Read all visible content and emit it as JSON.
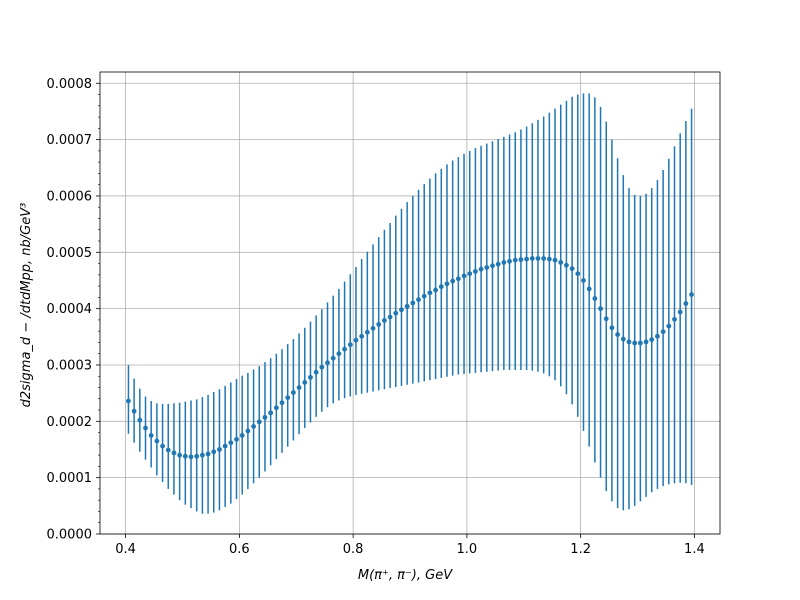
{
  "chart_data": {
    "type": "scatter",
    "title": "",
    "xlabel": "M(π⁺, π⁻), GeV",
    "ylabel": "d2sigma_d − /dtdMpp, nb/GeV³",
    "xlim": [
      0.355,
      1.445
    ],
    "ylim": [
      0.0,
      0.00082
    ],
    "grid": true,
    "legend": "none",
    "x_ticks": [
      0.4,
      0.6,
      0.8,
      1.0,
      1.2,
      1.4
    ],
    "x_tick_labels": [
      "0.4",
      "0.6",
      "0.8",
      "1.0",
      "1.2",
      "1.4"
    ],
    "y_ticks": [
      0.0,
      0.0001,
      0.0002,
      0.0003,
      0.0004,
      0.0005,
      0.0006,
      0.0007,
      0.0008
    ],
    "y_tick_labels": [
      "0.0000",
      "0.0001",
      "0.0002",
      "0.0003",
      "0.0004",
      "0.0005",
      "0.0006",
      "0.0007",
      "0.0008"
    ],
    "color": "#1f77b4",
    "series": [
      {
        "x": [
          0.405,
          0.415,
          0.425,
          0.435,
          0.445,
          0.455,
          0.465,
          0.475,
          0.485,
          0.495,
          0.505,
          0.515,
          0.525,
          0.535,
          0.545,
          0.555,
          0.565,
          0.575,
          0.585,
          0.595,
          0.605,
          0.615,
          0.625,
          0.635,
          0.645,
          0.655,
          0.665,
          0.675,
          0.685,
          0.695,
          0.705,
          0.715,
          0.725,
          0.735,
          0.745,
          0.755,
          0.765,
          0.775,
          0.785,
          0.795,
          0.805,
          0.815,
          0.825,
          0.835,
          0.845,
          0.855,
          0.865,
          0.875,
          0.885,
          0.895,
          0.905,
          0.915,
          0.925,
          0.935,
          0.945,
          0.955,
          0.965,
          0.975,
          0.985,
          0.995,
          1.005,
          1.015,
          1.025,
          1.035,
          1.045,
          1.055,
          1.065,
          1.075,
          1.085,
          1.095,
          1.105,
          1.115,
          1.125,
          1.135,
          1.145,
          1.155,
          1.165,
          1.175,
          1.185,
          1.195,
          1.205,
          1.215,
          1.225,
          1.235,
          1.245,
          1.255,
          1.265,
          1.275,
          1.285,
          1.295,
          1.305,
          1.315,
          1.325,
          1.335,
          1.345,
          1.355,
          1.365,
          1.375,
          1.385,
          1.395
        ],
        "y": [
          0.000236,
          0.000218,
          0.000202,
          0.000188,
          0.000175,
          0.000165,
          0.000156,
          0.000149,
          0.000144,
          0.00014,
          0.000138,
          0.000137,
          0.000138,
          0.00014,
          0.000142,
          0.000146,
          0.00015,
          0.000156,
          0.000162,
          0.000168,
          0.000175,
          0.000183,
          0.000191,
          0.000199,
          0.000207,
          0.000215,
          0.000224,
          0.000233,
          0.000242,
          0.000251,
          0.00026,
          0.000269,
          0.000278,
          0.000287,
          0.000296,
          0.000304,
          0.000312,
          0.00032,
          0.000328,
          0.000336,
          0.000344,
          0.000351,
          0.000358,
          0.000365,
          0.000372,
          0.000379,
          0.000385,
          0.000392,
          0.000398,
          0.000404,
          0.00041,
          0.000416,
          0.000422,
          0.000428,
          0.000433,
          0.000439,
          0.000444,
          0.000449,
          0.000453,
          0.000458,
          0.000462,
          0.000466,
          0.00047,
          0.000473,
          0.000476,
          0.000479,
          0.000482,
          0.000484,
          0.000486,
          0.000487,
          0.000488,
          0.000489,
          0.000489,
          0.000489,
          0.000488,
          0.000486,
          0.000482,
          0.000477,
          0.000471,
          0.000462,
          0.00045,
          0.000435,
          0.000418,
          0.0004,
          0.000382,
          0.000366,
          0.000354,
          0.000346,
          0.000341,
          0.000339,
          0.000339,
          0.000341,
          0.000345,
          0.000351,
          0.000359,
          0.000369,
          0.000381,
          0.000394,
          0.000409,
          0.000425
        ],
        "yerr_low": [
          0.000178,
          0.000162,
          0.000146,
          0.000132,
          0.000118,
          0.000104,
          9.2e-05,
          8e-05,
          7e-05,
          6e-05,
          5.2e-05,
          4.6e-05,
          4e-05,
          3.6e-05,
          3.6e-05,
          3.8e-05,
          4.2e-05,
          4.8e-05,
          5.4e-05,
          6.2e-05,
          7e-05,
          8e-05,
          9e-05,
          0.0001,
          0.000111,
          0.000122,
          0.000133,
          0.000144,
          0.000155,
          0.000166,
          0.000177,
          0.000188,
          0.000198,
          0.000208,
          0.000217,
          0.000225,
          0.000232,
          0.000237,
          0.000241,
          0.000244,
          0.000247,
          0.000249,
          0.000251,
          0.000253,
          0.000255,
          0.000257,
          0.000259,
          0.000261,
          0.000263,
          0.000265,
          0.000267,
          0.000269,
          0.000271,
          0.000273,
          0.000275,
          0.000277,
          0.000279,
          0.000281,
          0.000283,
          0.000284,
          0.000285,
          0.000286,
          0.000287,
          0.000288,
          0.000289,
          0.00029,
          0.000291,
          0.000291,
          0.000291,
          0.000291,
          0.000291,
          0.00029,
          0.000288,
          0.000285,
          0.00028,
          0.000273,
          0.000262,
          0.000248,
          0.00023,
          0.000208,
          0.000183,
          0.000155,
          0.000127,
          0.0001,
          7.6e-05,
          5.8e-05,
          4.6e-05,
          4.2e-05,
          4.4e-05,
          5e-05,
          5.8e-05,
          6.6e-05,
          7.4e-05,
          8e-05,
          8.5e-05,
          8.8e-05,
          9e-05,
          9.1e-05,
          9e-05,
          8.7e-05
        ],
        "yerr_high": [
          0.0003,
          0.000276,
          0.000258,
          0.000244,
          0.000236,
          0.000232,
          0.000231,
          0.000231,
          0.000232,
          0.000233,
          0.000235,
          0.000237,
          0.000239,
          0.000243,
          0.000247,
          0.000252,
          0.000257,
          0.000263,
          0.000269,
          0.000275,
          0.000281,
          0.000286,
          0.000292,
          0.000298,
          0.000305,
          0.000312,
          0.00032,
          0.000328,
          0.000337,
          0.000346,
          0.000356,
          0.000366,
          0.000377,
          0.000388,
          0.000399,
          0.000411,
          0.000423,
          0.000435,
          0.000448,
          0.000461,
          0.000474,
          0.000488,
          0.000501,
          0.000514,
          0.000527,
          0.00054,
          0.000552,
          0.000565,
          0.000577,
          0.000589,
          0.0006,
          0.000611,
          0.000621,
          0.000631,
          0.00064,
          0.000648,
          0.000656,
          0.000663,
          0.000669,
          0.000675,
          0.00068,
          0.000685,
          0.000689,
          0.000693,
          0.000697,
          0.000701,
          0.000705,
          0.000709,
          0.000713,
          0.000718,
          0.000723,
          0.000729,
          0.000735,
          0.000741,
          0.000748,
          0.000755,
          0.000762,
          0.000769,
          0.000776,
          0.00078,
          0.000782,
          0.000782,
          0.000775,
          0.000758,
          0.000732,
          0.0007,
          0.000667,
          0.000637,
          0.000614,
          0.000602,
          0.0006,
          0.000604,
          0.000614,
          0.000628,
          0.000646,
          0.000666,
          0.000688,
          0.000711,
          0.000733,
          0.000755
        ]
      }
    ]
  }
}
